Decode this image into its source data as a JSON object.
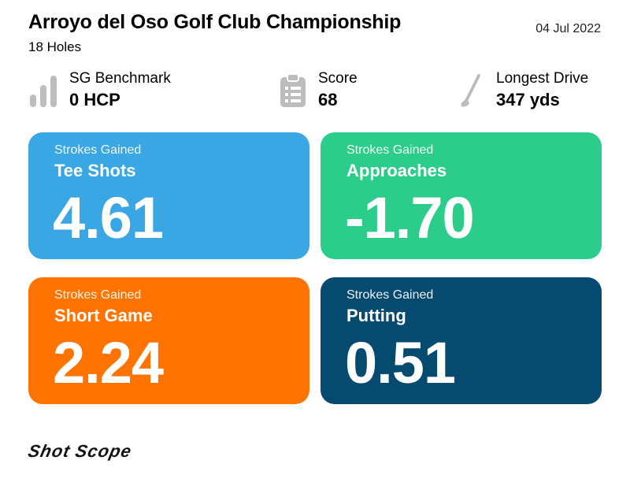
{
  "header": {
    "title": "Arroyo del Oso Golf Club Championship",
    "subtitle": "18 Holes",
    "date": "04 Jul 2022"
  },
  "stats": [
    {
      "label": "SG Benchmark",
      "value": "0 HCP",
      "icon": "bar-chart-icon"
    },
    {
      "label": "Score",
      "value": "68",
      "icon": "clipboard-icon"
    },
    {
      "label": "Longest Drive",
      "value": "347 yds",
      "icon": "golf-club-icon"
    }
  ],
  "cards": [
    {
      "kicker": "Strokes Gained",
      "title": "Tee Shots",
      "value": "4.61",
      "color": "#3aa6e3"
    },
    {
      "kicker": "Strokes Gained",
      "title": "Approaches",
      "value": "-1.70",
      "color": "#2ccc8a"
    },
    {
      "kicker": "Strokes Gained",
      "title": "Short Game",
      "value": "2.24",
      "color": "#ff7300"
    },
    {
      "kicker": "Strokes Gained",
      "title": "Putting",
      "value": "0.51",
      "color": "#064a70"
    }
  ],
  "footer": {
    "logo": "Shot Scope"
  },
  "colors": {
    "icon_gray": "#bdbdbd"
  }
}
